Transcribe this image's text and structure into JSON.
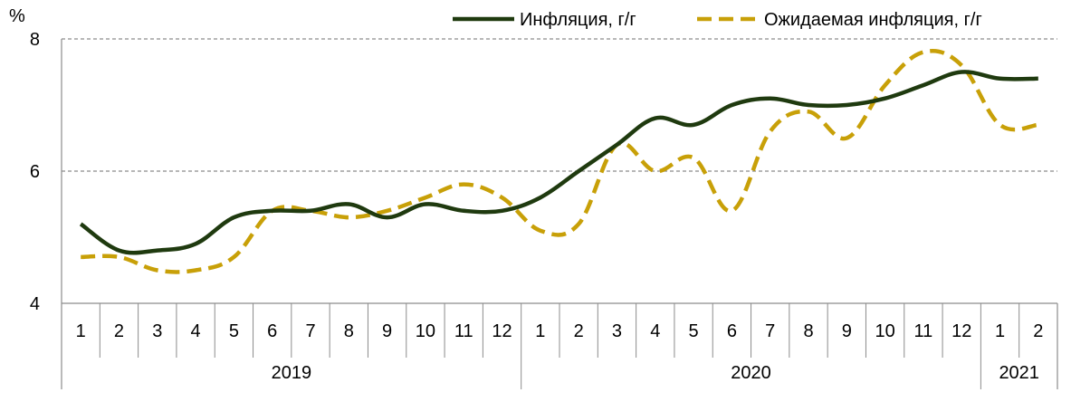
{
  "chart_data": {
    "type": "line",
    "ylabel": "%",
    "ylim": [
      4,
      8
    ],
    "yticks": [
      4,
      6,
      8
    ],
    "grid": "horizontal dashed",
    "legend_position": "top-right",
    "x": [
      "1",
      "2",
      "3",
      "4",
      "5",
      "6",
      "7",
      "8",
      "9",
      "10",
      "11",
      "12",
      "1",
      "2",
      "3",
      "4",
      "5",
      "6",
      "7",
      "8",
      "9",
      "10",
      "11",
      "12",
      "1",
      "2"
    ],
    "year_groups": [
      {
        "label": "2019",
        "count": 12
      },
      {
        "label": "2020",
        "count": 12
      },
      {
        "label": "2021",
        "count": 2
      }
    ],
    "series": [
      {
        "name": "Инфляция, г/г",
        "color": "#1f3a0f",
        "style": "solid",
        "values": [
          5.2,
          4.8,
          4.8,
          4.9,
          5.3,
          5.4,
          5.4,
          5.5,
          5.3,
          5.5,
          5.4,
          5.4,
          5.6,
          6.0,
          6.4,
          6.8,
          6.7,
          7.0,
          7.1,
          7.0,
          7.0,
          7.1,
          7.3,
          7.5,
          7.4,
          7.4
        ]
      },
      {
        "name": "Ожидаемая инфляция, г/г",
        "color": "#c8a008",
        "style": "dashed",
        "values": [
          4.7,
          4.7,
          4.5,
          4.5,
          4.7,
          5.4,
          5.4,
          5.3,
          5.4,
          5.6,
          5.8,
          5.6,
          5.1,
          5.2,
          6.4,
          6.0,
          6.2,
          5.4,
          6.6,
          6.9,
          6.5,
          7.3,
          7.8,
          7.6,
          6.7,
          6.7
        ]
      }
    ]
  }
}
